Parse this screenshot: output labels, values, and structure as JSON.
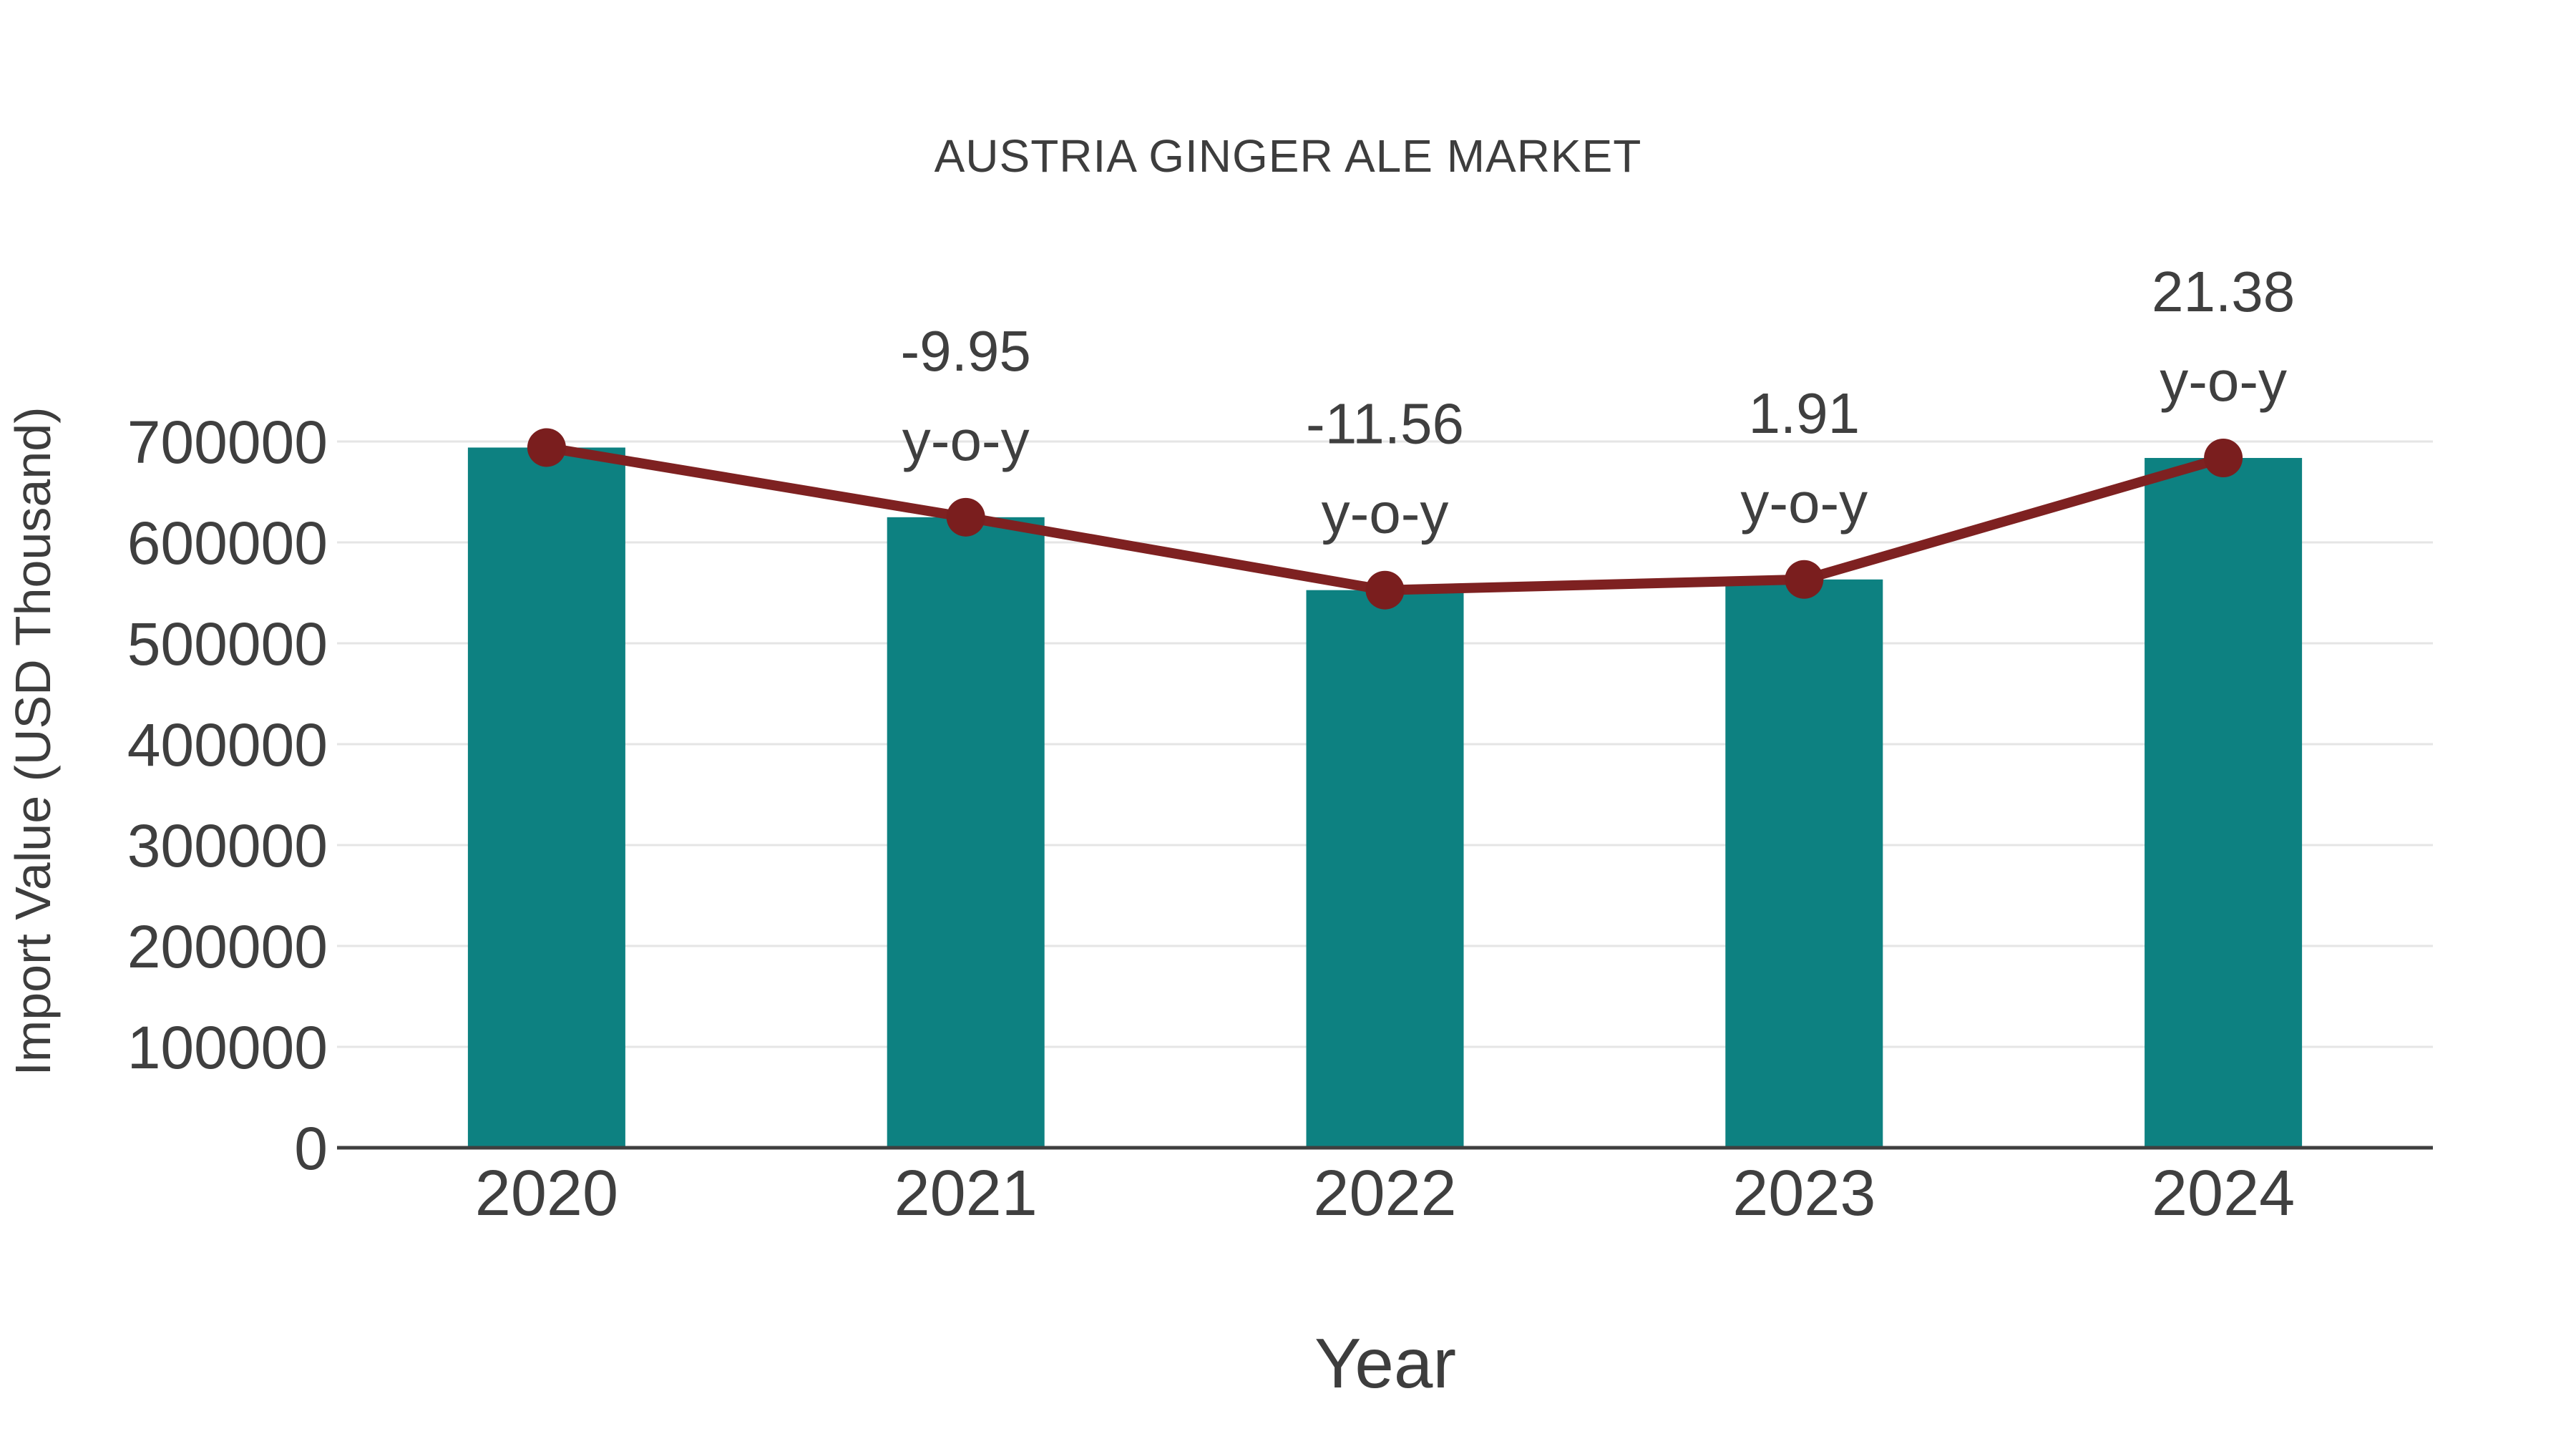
{
  "title": "AUSTRIA GINGER ALE MARKET",
  "x_axis": {
    "label": "Year",
    "ticks": [
      "2020",
      "2021",
      "2022",
      "2023",
      "2024"
    ]
  },
  "y_axis": {
    "label": "Import Value (USD Thousand)",
    "ticks": [
      "0",
      "100000",
      "200000",
      "300000",
      "400000",
      "500000",
      "600000",
      "700000"
    ]
  },
  "colors": {
    "bar": "#0d8181",
    "line": "#7e2121",
    "marker": "#7a1e1e",
    "grid": "#e5e5e5",
    "axis": "#3f3f3f",
    "tick_text": "#3f3f3f",
    "annotation_text": "#3f3f3f",
    "title_text": "#3d3d3d",
    "background": "#ffffff"
  },
  "chart_data": {
    "type": "bar",
    "title": "AUSTRIA GINGER ALE MARKET",
    "xlabel": "Year",
    "ylabel": "Import Value (USD Thousand)",
    "categories": [
      "2020",
      "2021",
      "2022",
      "2023",
      "2024"
    ],
    "series": [
      {
        "name": "Import Value (USD Thousand)",
        "type": "bar",
        "values": [
          694000,
          624950,
          552700,
          563260,
          683690
        ]
      },
      {
        "name": "y-o-y change (%)",
        "type": "line",
        "values_percent": [
          null,
          -9.95,
          -11.56,
          1.91,
          21.38
        ],
        "plotted_at_values": [
          694000,
          624950,
          552700,
          563260,
          683690
        ]
      }
    ],
    "annotations": [
      {
        "category": "2021",
        "lines": [
          "-9.95",
          "y-o-y"
        ]
      },
      {
        "category": "2022",
        "lines": [
          "-11.56",
          "y-o-y"
        ]
      },
      {
        "category": "2023",
        "lines": [
          "1.91",
          "y-o-y"
        ]
      },
      {
        "category": "2024",
        "lines": [
          "21.38",
          "y-o-y"
        ]
      }
    ],
    "ylim": [
      0,
      750000
    ],
    "yticks": [
      0,
      100000,
      200000,
      300000,
      400000,
      500000,
      600000,
      700000
    ],
    "grid": true,
    "legend": false
  }
}
